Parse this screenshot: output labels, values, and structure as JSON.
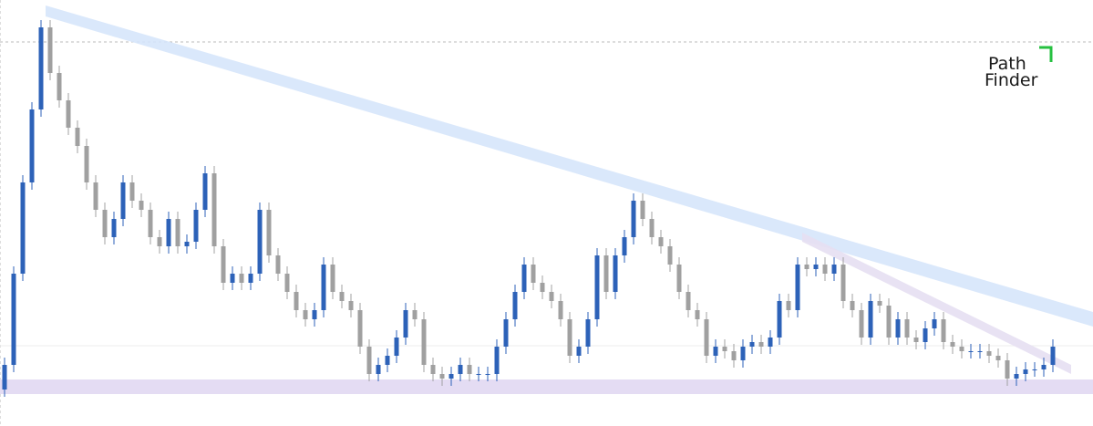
{
  "chart_data": {
    "type": "candlestick",
    "ylim": [
      0,
      467
    ],
    "up_color": "#2d62b8",
    "down_color": "#a0a0a0",
    "open": [
      40,
      67,
      167,
      267,
      347,
      437,
      387,
      357,
      327,
      307,
      267,
      237,
      207,
      227,
      267,
      247,
      237,
      207,
      197,
      227,
      197,
      202,
      237,
      277,
      197,
      157,
      167,
      157,
      167,
      237,
      187,
      167,
      147,
      127,
      117,
      127,
      177,
      147,
      137,
      127,
      87,
      57,
      67,
      77,
      97,
      127,
      117,
      67,
      57,
      52,
      57,
      67,
      57,
      57,
      57,
      87,
      117,
      147,
      177,
      157,
      147,
      137,
      117,
      77,
      87,
      117,
      187,
      147,
      187,
      207,
      247,
      227,
      207,
      197,
      177,
      147,
      127,
      117,
      77,
      87,
      82,
      72,
      87,
      92,
      87,
      97,
      137,
      127,
      177,
      172,
      177,
      167,
      177,
      137,
      127,
      97,
      137,
      132,
      97,
      117,
      97,
      92,
      107,
      117,
      92,
      87,
      82,
      82,
      82,
      77,
      72,
      52,
      57,
      62,
      62,
      67
    ],
    "close": [
      67,
      167,
      267,
      347,
      437,
      387,
      357,
      327,
      307,
      267,
      237,
      207,
      227,
      267,
      247,
      237,
      207,
      197,
      227,
      197,
      202,
      237,
      277,
      197,
      157,
      167,
      157,
      167,
      237,
      187,
      167,
      147,
      127,
      117,
      127,
      177,
      147,
      137,
      127,
      87,
      57,
      67,
      77,
      97,
      127,
      117,
      67,
      57,
      52,
      57,
      67,
      57,
      57,
      57,
      87,
      117,
      147,
      177,
      157,
      147,
      137,
      117,
      77,
      87,
      117,
      187,
      147,
      187,
      207,
      247,
      227,
      207,
      197,
      177,
      147,
      127,
      117,
      77,
      87,
      82,
      72,
      87,
      92,
      87,
      97,
      137,
      127,
      177,
      172,
      177,
      167,
      177,
      137,
      127,
      97,
      137,
      132,
      97,
      117,
      97,
      92,
      107,
      117,
      92,
      87,
      82,
      82,
      82,
      77,
      72,
      52,
      57,
      62,
      62,
      67,
      87
    ],
    "high": [
      75,
      175,
      275,
      355,
      445,
      445,
      395,
      365,
      335,
      315,
      275,
      245,
      235,
      275,
      275,
      255,
      245,
      215,
      235,
      235,
      210,
      245,
      285,
      285,
      205,
      175,
      175,
      175,
      245,
      245,
      195,
      175,
      155,
      135,
      135,
      185,
      185,
      155,
      145,
      135,
      95,
      75,
      85,
      105,
      135,
      135,
      125,
      75,
      65,
      65,
      75,
      75,
      65,
      65,
      95,
      125,
      155,
      185,
      185,
      165,
      155,
      145,
      125,
      95,
      125,
      195,
      195,
      195,
      215,
      255,
      255,
      235,
      215,
      205,
      185,
      155,
      135,
      125,
      95,
      95,
      90,
      95,
      100,
      100,
      105,
      145,
      145,
      185,
      185,
      185,
      185,
      185,
      185,
      145,
      135,
      145,
      145,
      140,
      125,
      125,
      105,
      115,
      125,
      125,
      100,
      95,
      90,
      90,
      90,
      85,
      80,
      65,
      70,
      70,
      75,
      95
    ],
    "low": [
      32,
      59,
      159,
      259,
      339,
      379,
      349,
      319,
      299,
      259,
      229,
      199,
      199,
      219,
      239,
      229,
      199,
      189,
      189,
      189,
      189,
      194,
      229,
      189,
      149,
      149,
      149,
      149,
      159,
      179,
      159,
      139,
      119,
      109,
      109,
      119,
      139,
      129,
      119,
      79,
      49,
      49,
      59,
      69,
      89,
      109,
      59,
      49,
      44,
      44,
      49,
      49,
      49,
      49,
      49,
      79,
      109,
      139,
      149,
      139,
      129,
      109,
      69,
      69,
      79,
      109,
      139,
      139,
      179,
      199,
      219,
      199,
      189,
      169,
      139,
      119,
      109,
      69,
      69,
      74,
      64,
      64,
      79,
      79,
      79,
      89,
      119,
      119,
      164,
      164,
      159,
      159,
      129,
      119,
      89,
      89,
      124,
      89,
      89,
      89,
      84,
      84,
      99,
      84,
      79,
      74,
      74,
      74,
      69,
      64,
      44,
      44,
      49,
      54,
      54,
      59
    ]
  },
  "logo": {
    "line1": "Path",
    "line2": "Finder"
  }
}
